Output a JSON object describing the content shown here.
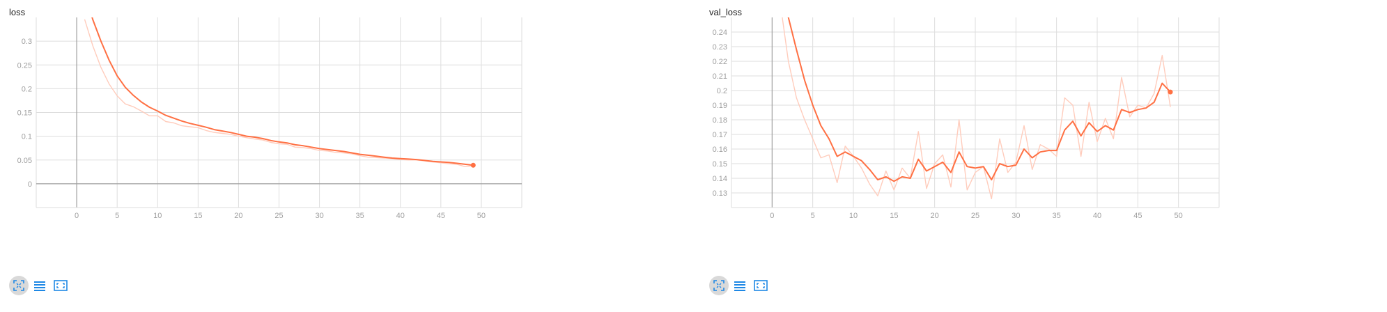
{
  "colors": {
    "smoothed": "#ff7043",
    "raw": "#ffccbc",
    "grid": "#dddddd",
    "axis": "#9e9e9e",
    "tick_text": "#9e9e9e",
    "toolbar_icon": "#1e88e5"
  },
  "toolbar": {
    "icons": [
      "fit-domain-icon",
      "data-table-icon",
      "expand-icon"
    ]
  },
  "chart_data": [
    {
      "type": "line",
      "title": "loss",
      "xlabel": "",
      "ylabel": "",
      "x_ticks": [
        0,
        5,
        10,
        15,
        20,
        25,
        30,
        35,
        40,
        45,
        50
      ],
      "y_ticks": [
        0,
        0.05,
        0.1,
        0.15,
        0.2,
        0.25,
        0.3
      ],
      "xlim": [
        -5,
        55
      ],
      "ylim": [
        -0.05,
        0.35
      ],
      "grid": true,
      "series": [
        {
          "style": "raw",
          "x": [
            1,
            2,
            3,
            4,
            5,
            6,
            7,
            8,
            9,
            10,
            11,
            12,
            13,
            14,
            15,
            16,
            17,
            18,
            19,
            20,
            21,
            22,
            23,
            24,
            25,
            26,
            27,
            28,
            29,
            30,
            31,
            32,
            33,
            34,
            35,
            36,
            37,
            38,
            39,
            40,
            41,
            42,
            43,
            44,
            45,
            46,
            47,
            48,
            49
          ],
          "values": [
            0.345,
            0.29,
            0.245,
            0.21,
            0.185,
            0.168,
            0.162,
            0.153,
            0.143,
            0.143,
            0.131,
            0.128,
            0.122,
            0.12,
            0.118,
            0.112,
            0.108,
            0.106,
            0.104,
            0.1,
            0.097,
            0.094,
            0.092,
            0.087,
            0.084,
            0.083,
            0.077,
            0.076,
            0.074,
            0.07,
            0.069,
            0.066,
            0.065,
            0.063,
            0.059,
            0.056,
            0.055,
            0.054,
            0.053,
            0.051,
            0.05,
            0.05,
            0.048,
            0.046,
            0.044,
            0.042,
            0.041,
            0.036,
            0.038
          ]
        },
        {
          "style": "smoothed",
          "x": [
            1,
            2,
            3,
            4,
            5,
            6,
            7,
            8,
            9,
            10,
            11,
            12,
            13,
            14,
            15,
            16,
            17,
            18,
            19,
            20,
            21,
            22,
            23,
            24,
            25,
            26,
            27,
            28,
            29,
            30,
            31,
            32,
            33,
            34,
            35,
            36,
            37,
            38,
            39,
            40,
            41,
            42,
            43,
            44,
            45,
            46,
            47,
            48,
            49
          ],
          "values": [
            0.4,
            0.345,
            0.3,
            0.26,
            0.227,
            0.203,
            0.186,
            0.172,
            0.161,
            0.153,
            0.144,
            0.138,
            0.132,
            0.127,
            0.123,
            0.119,
            0.114,
            0.111,
            0.108,
            0.104,
            0.1,
            0.098,
            0.095,
            0.091,
            0.088,
            0.086,
            0.082,
            0.08,
            0.077,
            0.074,
            0.072,
            0.07,
            0.068,
            0.065,
            0.062,
            0.06,
            0.058,
            0.056,
            0.054,
            0.053,
            0.052,
            0.051,
            0.049,
            0.047,
            0.046,
            0.045,
            0.043,
            0.041,
            0.039
          ]
        }
      ]
    },
    {
      "type": "line",
      "title": "val_loss",
      "xlabel": "",
      "ylabel": "",
      "x_ticks": [
        0,
        5,
        10,
        15,
        20,
        25,
        30,
        35,
        40,
        45,
        50
      ],
      "y_ticks": [
        0.13,
        0.14,
        0.15,
        0.16,
        0.17,
        0.18,
        0.19,
        0.2,
        0.21,
        0.22,
        0.23,
        0.24
      ],
      "xlim": [
        -5,
        55
      ],
      "ylim": [
        0.12,
        0.25
      ],
      "grid": true,
      "series": [
        {
          "style": "raw",
          "x": [
            1,
            2,
            3,
            4,
            5,
            6,
            7,
            8,
            9,
            10,
            11,
            12,
            13,
            14,
            15,
            16,
            17,
            18,
            19,
            20,
            21,
            22,
            23,
            24,
            25,
            26,
            27,
            28,
            29,
            30,
            31,
            32,
            33,
            34,
            35,
            36,
            37,
            38,
            39,
            40,
            41,
            42,
            43,
            44,
            45,
            46,
            47,
            48,
            49
          ],
          "values": [
            0.26,
            0.22,
            0.195,
            0.18,
            0.167,
            0.154,
            0.156,
            0.137,
            0.162,
            0.155,
            0.147,
            0.136,
            0.128,
            0.145,
            0.132,
            0.147,
            0.14,
            0.172,
            0.133,
            0.15,
            0.156,
            0.134,
            0.18,
            0.132,
            0.144,
            0.148,
            0.126,
            0.167,
            0.144,
            0.151,
            0.176,
            0.146,
            0.163,
            0.16,
            0.155,
            0.195,
            0.19,
            0.155,
            0.192,
            0.165,
            0.181,
            0.167,
            0.209,
            0.182,
            0.19,
            0.188,
            0.198,
            0.224,
            0.189
          ]
        },
        {
          "style": "smoothed",
          "x": [
            1,
            2,
            3,
            4,
            5,
            6,
            7,
            8,
            9,
            10,
            11,
            12,
            13,
            14,
            15,
            16,
            17,
            18,
            19,
            20,
            21,
            22,
            23,
            24,
            25,
            26,
            27,
            28,
            29,
            30,
            31,
            32,
            33,
            34,
            35,
            36,
            37,
            38,
            39,
            40,
            41,
            42,
            43,
            44,
            45,
            46,
            47,
            48,
            49
          ],
          "values": [
            0.27,
            0.25,
            0.228,
            0.207,
            0.19,
            0.176,
            0.167,
            0.155,
            0.158,
            0.155,
            0.152,
            0.146,
            0.139,
            0.141,
            0.138,
            0.141,
            0.14,
            0.153,
            0.145,
            0.148,
            0.151,
            0.144,
            0.158,
            0.148,
            0.147,
            0.148,
            0.139,
            0.15,
            0.148,
            0.149,
            0.16,
            0.154,
            0.158,
            0.159,
            0.159,
            0.173,
            0.179,
            0.169,
            0.178,
            0.172,
            0.176,
            0.173,
            0.187,
            0.185,
            0.187,
            0.188,
            0.192,
            0.205,
            0.199
          ]
        }
      ]
    }
  ]
}
